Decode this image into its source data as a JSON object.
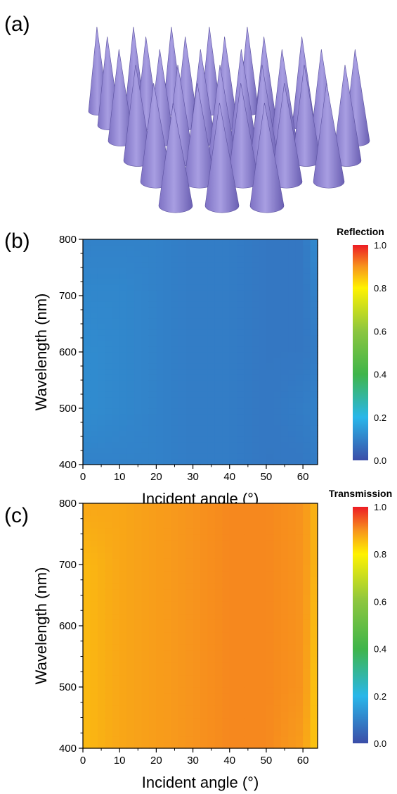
{
  "panels": {
    "a": {
      "label": "(a)"
    },
    "b": {
      "label": "(b)"
    },
    "c": {
      "label": "(c)"
    }
  },
  "chart_data": [
    {
      "panel": "b",
      "type": "heatmap",
      "colorbar_title": "Reflection",
      "xlabel": "Incident angle (°)",
      "ylabel": "Wavelength (nm)",
      "xlim": [
        0,
        64
      ],
      "ylim": [
        400,
        800
      ],
      "x_ticks": [
        "0",
        "10",
        "20",
        "30",
        "40",
        "50",
        "60"
      ],
      "y_ticks": [
        "400",
        "500",
        "600",
        "700",
        "800"
      ],
      "colorbar_range": [
        0.0,
        1.0
      ],
      "colorbar_ticks": [
        "0.0",
        "0.2",
        "0.4",
        "0.6",
        "0.8",
        "1.0"
      ],
      "x": [
        0,
        10,
        20,
        30,
        40,
        50,
        60,
        64
      ],
      "y": [
        400,
        500,
        600,
        700,
        800
      ],
      "z": [
        [
          0.1,
          0.1,
          0.1,
          0.09,
          0.09,
          0.08,
          0.08,
          0.09
        ],
        [
          0.12,
          0.11,
          0.1,
          0.09,
          0.09,
          0.08,
          0.09,
          0.1
        ],
        [
          0.12,
          0.11,
          0.1,
          0.09,
          0.09,
          0.08,
          0.08,
          0.09
        ],
        [
          0.11,
          0.11,
          0.1,
          0.09,
          0.09,
          0.08,
          0.08,
          0.1
        ],
        [
          0.1,
          0.1,
          0.1,
          0.09,
          0.09,
          0.08,
          0.08,
          0.12
        ]
      ]
    },
    {
      "panel": "c",
      "type": "heatmap",
      "colorbar_title": "Transmission",
      "xlabel": "Incident angle (°)",
      "ylabel": "Wavelength (nm)",
      "xlim": [
        0,
        64
      ],
      "ylim": [
        400,
        800
      ],
      "x_ticks": [
        "0",
        "10",
        "20",
        "30",
        "40",
        "50",
        "60"
      ],
      "y_ticks": [
        "400",
        "500",
        "600",
        "700",
        "800"
      ],
      "colorbar_range": [
        0.0,
        1.0
      ],
      "colorbar_ticks": [
        "0.0",
        "0.2",
        "0.4",
        "0.6",
        "0.8",
        "1.0"
      ],
      "x": [
        0,
        10,
        20,
        30,
        40,
        50,
        60,
        64
      ],
      "y": [
        400,
        500,
        600,
        700,
        800
      ],
      "z": [
        [
          0.86,
          0.88,
          0.89,
          0.9,
          0.91,
          0.91,
          0.89,
          0.84
        ],
        [
          0.86,
          0.88,
          0.89,
          0.9,
          0.91,
          0.91,
          0.9,
          0.84
        ],
        [
          0.86,
          0.88,
          0.89,
          0.9,
          0.91,
          0.91,
          0.9,
          0.85
        ],
        [
          0.86,
          0.88,
          0.89,
          0.9,
          0.91,
          0.91,
          0.9,
          0.86
        ],
        [
          0.88,
          0.88,
          0.89,
          0.9,
          0.91,
          0.91,
          0.9,
          0.86
        ]
      ]
    }
  ]
}
